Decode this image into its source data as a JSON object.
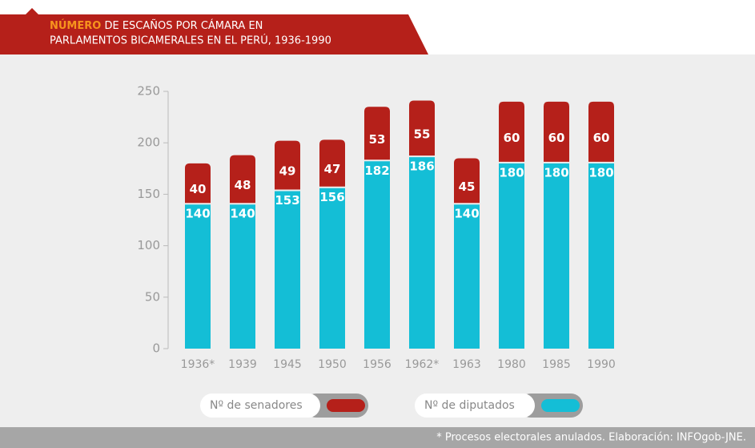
{
  "chart_data": {
    "type": "stacked_bar",
    "title": [
      "NÚMERO",
      "DE ESCAÑOS POR CÁMARA EN",
      "PARLAMENTOS BICAMERALES EN EL PERÚ, 1936-1990"
    ],
    "categories": [
      "1936*",
      "1939",
      "1945",
      "1950",
      "1956",
      "1962*",
      "1963",
      "1980",
      "1985",
      "1990"
    ],
    "series": [
      {
        "name": "Nº de diputados",
        "color": "#14bed6",
        "values": [
          140,
          140,
          153,
          156,
          182,
          186,
          140,
          180,
          180,
          180
        ]
      },
      {
        "name": "Nº de senadores",
        "color": "#b5201a",
        "values": [
          40,
          48,
          49,
          47,
          53,
          55,
          45,
          60,
          60,
          60
        ]
      }
    ],
    "legend_order": [
      1,
      0
    ],
    "ylim": [
      0,
      250
    ],
    "yticks": [
      0,
      50,
      100,
      150,
      200,
      250
    ],
    "footnote": "* Procesos electorales anulados. Elaboración: INFOgob-JNE."
  }
}
